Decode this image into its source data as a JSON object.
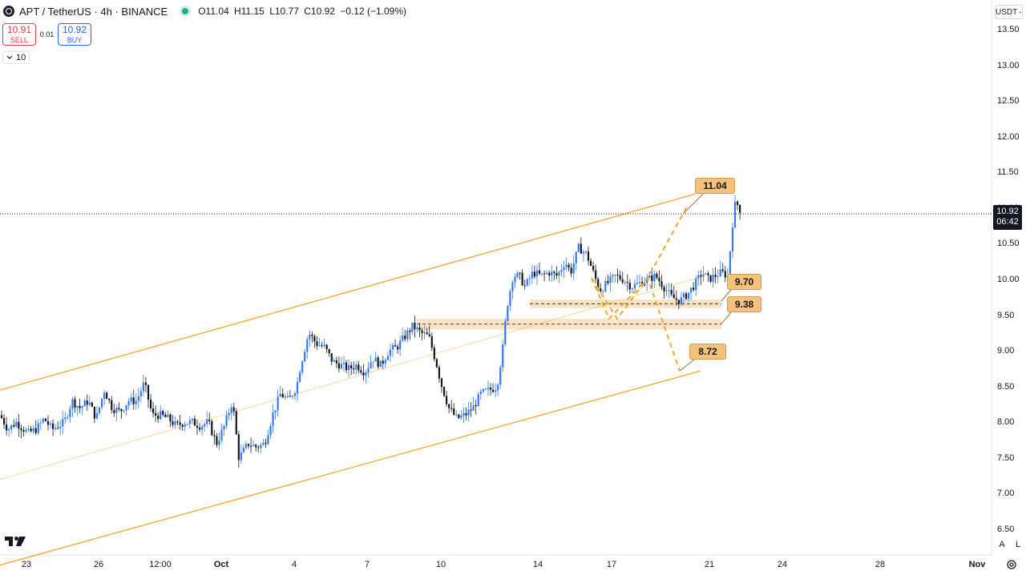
{
  "header": {
    "symbol_title": "APT / TetherUS · 4h · BINANCE",
    "ohlc_open": "O11.04",
    "ohlc_high": "H11.15",
    "ohlc_low": "L10.77",
    "ohlc_close": "C10.92",
    "ohlc_change": "−0.12 (−1.09%)"
  },
  "trade": {
    "sell_price": "10.91",
    "sell_label": "SELL",
    "spread": "0.01",
    "buy_price": "10.92",
    "buy_label": "BUY"
  },
  "indicators": {
    "toggle_count": "10"
  },
  "currency": "USDT",
  "current_price": {
    "price": "10.92",
    "countdown": "06:42"
  },
  "price_axis": [
    "13.50",
    "13.00",
    "12.50",
    "12.00",
    "11.50",
    "11.00",
    "10.50",
    "10.00",
    "9.50",
    "9.00",
    "8.50",
    "8.00",
    "7.50",
    "7.00",
    "6.50"
  ],
  "time_axis": [
    "23",
    "26",
    "12:00",
    "Oct",
    "4",
    "7",
    "10",
    "14",
    "17",
    "21",
    "24",
    "28",
    "Nov"
  ],
  "callouts": {
    "top": "11.04",
    "upper_support": "9.70",
    "lower_support": "9.38",
    "bottom": "8.72"
  },
  "scale_buttons": {
    "auto": "A",
    "log": "L"
  },
  "colors": {
    "bull": "#3179f5",
    "bear": "#131722",
    "channel": "#f5a623",
    "zone": "#fbdcb5",
    "callout_bg": "#f5c27b"
  },
  "chart_data": {
    "type": "candlestick",
    "symbol": "APT / TetherUS",
    "interval": "4h",
    "exchange": "BINANCE",
    "ylim": [
      6.5,
      13.5
    ],
    "x": [
      "23",
      "26",
      "12:00",
      "Oct",
      "4",
      "7",
      "10",
      "14",
      "17",
      "21",
      "24",
      "28",
      "Nov"
    ],
    "channel_upper": [
      [
        0,
        8.45
      ],
      [
        868,
        11.2
      ]
    ],
    "channel_lower": [
      [
        0,
        6.0
      ],
      [
        874,
        8.72
      ]
    ],
    "zones": [
      {
        "low": 9.6,
        "high": 9.72
      },
      {
        "low": 9.3,
        "high": 9.45
      }
    ],
    "projections": [
      {
        "from": 10.02,
        "to": 11.04
      },
      {
        "from": 10.02,
        "to": 8.72
      }
    ],
    "annotations": [
      11.04,
      9.7,
      9.38,
      8.72
    ],
    "anchors": [
      [
        0,
        8.1
      ],
      [
        10,
        7.9
      ],
      [
        20,
        8.0
      ],
      [
        35,
        7.85
      ],
      [
        45,
        7.9
      ],
      [
        55,
        8.05
      ],
      [
        65,
        7.9
      ],
      [
        80,
        8.0
      ],
      [
        90,
        8.3
      ],
      [
        100,
        8.2
      ],
      [
        110,
        8.3
      ],
      [
        120,
        8.05
      ],
      [
        130,
        8.45
      ],
      [
        140,
        8.2
      ],
      [
        150,
        8.15
      ],
      [
        160,
        8.3
      ],
      [
        170,
        8.3
      ],
      [
        180,
        8.55
      ],
      [
        190,
        8.1
      ],
      [
        200,
        8.1
      ],
      [
        210,
        8.05
      ],
      [
        220,
        7.95
      ],
      [
        230,
        8.0
      ],
      [
        240,
        8.0
      ],
      [
        250,
        7.95
      ],
      [
        260,
        8.0
      ],
      [
        270,
        7.7
      ],
      [
        280,
        7.95
      ],
      [
        290,
        8.3
      ],
      [
        298,
        7.5
      ],
      [
        310,
        7.7
      ],
      [
        320,
        7.65
      ],
      [
        330,
        7.7
      ],
      [
        340,
        8.1
      ],
      [
        350,
        8.4
      ],
      [
        360,
        8.3
      ],
      [
        370,
        8.5
      ],
      [
        375,
        8.8
      ],
      [
        385,
        9.25
      ],
      [
        395,
        9.1
      ],
      [
        405,
        9.05
      ],
      [
        415,
        8.85
      ],
      [
        425,
        8.8
      ],
      [
        435,
        8.75
      ],
      [
        445,
        8.8
      ],
      [
        455,
        8.7
      ],
      [
        465,
        8.9
      ],
      [
        475,
        8.8
      ],
      [
        485,
        9.0
      ],
      [
        495,
        9.05
      ],
      [
        505,
        9.2
      ],
      [
        515,
        9.35
      ],
      [
        525,
        9.25
      ],
      [
        535,
        9.2
      ],
      [
        545,
        8.8
      ],
      [
        550,
        8.55
      ],
      [
        560,
        8.2
      ],
      [
        570,
        8.05
      ],
      [
        580,
        8.1
      ],
      [
        590,
        8.2
      ],
      [
        600,
        8.4
      ],
      [
        610,
        8.45
      ],
      [
        620,
        8.5
      ],
      [
        628,
        9.1
      ],
      [
        632,
        9.6
      ],
      [
        640,
        10.05
      ],
      [
        648,
        10.05
      ],
      [
        655,
        9.9
      ],
      [
        665,
        10.1
      ],
      [
        675,
        10.05
      ],
      [
        685,
        10.1
      ],
      [
        695,
        10.05
      ],
      [
        705,
        10.25
      ],
      [
        712,
        10.1
      ],
      [
        722,
        10.45
      ],
      [
        732,
        10.35
      ],
      [
        740,
        10.1
      ],
      [
        748,
        9.85
      ],
      [
        758,
        9.95
      ],
      [
        768,
        10.05
      ],
      [
        778,
        10.0
      ],
      [
        788,
        9.9
      ],
      [
        798,
        9.95
      ],
      [
        808,
        10.0
      ],
      [
        818,
        10.05
      ],
      [
        828,
        9.9
      ],
      [
        838,
        9.75
      ],
      [
        848,
        9.7
      ],
      [
        858,
        9.8
      ],
      [
        868,
        9.95
      ],
      [
        876,
        10.1
      ],
      [
        884,
        10.0
      ],
      [
        892,
        10.05
      ],
      [
        900,
        10.1
      ],
      [
        908,
        10.05
      ],
      [
        916,
        11.04
      ],
      [
        920,
        11.05
      ],
      [
        926,
        10.92
      ]
    ]
  }
}
